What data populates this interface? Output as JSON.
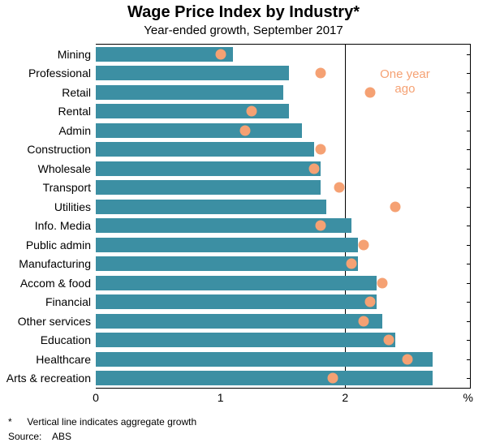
{
  "chart": {
    "type": "bar-horizontal-with-dots",
    "title": "Wage Price Index by Industry*",
    "subtitle": "Year-ended growth, September 2017",
    "xlim": [
      0,
      3
    ],
    "xticks": [
      0,
      1,
      2
    ],
    "x_unit_label": "%",
    "aggregate_line": 2.0,
    "bar_color": "#3c8fa3",
    "dot_color": "#f5a173",
    "background_color": "#ffffff",
    "dot_legend_text": "One year\nago",
    "categories": [
      {
        "label": "Mining",
        "bar": 1.1,
        "dot": 1.0
      },
      {
        "label": "Professional",
        "bar": 1.55,
        "dot": 1.8
      },
      {
        "label": "Retail",
        "bar": 1.5,
        "dot": null
      },
      {
        "label": "Rental",
        "bar": 1.55,
        "dot": 1.25
      },
      {
        "label": "Admin",
        "bar": 1.65,
        "dot": 1.2
      },
      {
        "label": "Construction",
        "bar": 1.75,
        "dot": 1.8
      },
      {
        "label": "Wholesale",
        "bar": 1.8,
        "dot": 1.75
      },
      {
        "label": "Transport",
        "bar": 1.8,
        "dot": 1.95
      },
      {
        "label": "Utilities",
        "bar": 1.85,
        "dot": 2.4
      },
      {
        "label": "Info. Media",
        "bar": 2.05,
        "dot": 1.8
      },
      {
        "label": "Public admin",
        "bar": 2.1,
        "dot": 2.15
      },
      {
        "label": "Manufacturing",
        "bar": 2.1,
        "dot": 2.05
      },
      {
        "label": "Accom & food",
        "bar": 2.25,
        "dot": 2.3
      },
      {
        "label": "Financial",
        "bar": 2.25,
        "dot": 2.2
      },
      {
        "label": "Other services",
        "bar": 2.3,
        "dot": 2.15
      },
      {
        "label": "Education",
        "bar": 2.4,
        "dot": 2.35
      },
      {
        "label": "Healthcare",
        "bar": 2.7,
        "dot": 2.5
      },
      {
        "label": "Arts & recreation",
        "bar": 2.7,
        "dot": 1.9
      }
    ],
    "footnote": "Vertical line indicates aggregate growth",
    "footnote_marker": "*",
    "source_label": "Source:",
    "source_value": "ABS"
  }
}
